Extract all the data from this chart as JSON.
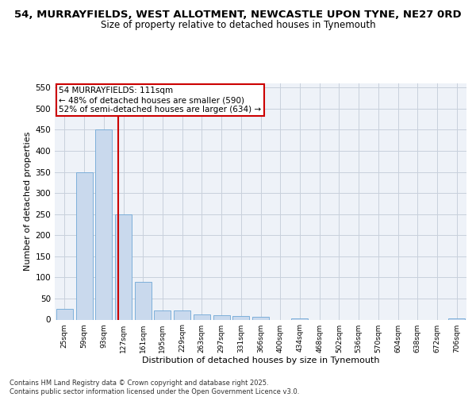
{
  "title_line1": "54, MURRAYFIELDS, WEST ALLOTMENT, NEWCASTLE UPON TYNE, NE27 0RD",
  "title_line2": "Size of property relative to detached houses in Tynemouth",
  "xlabel": "Distribution of detached houses by size in Tynemouth",
  "ylabel": "Number of detached properties",
  "bar_labels": [
    "25sqm",
    "59sqm",
    "93sqm",
    "127sqm",
    "161sqm",
    "195sqm",
    "229sqm",
    "263sqm",
    "297sqm",
    "331sqm",
    "366sqm",
    "400sqm",
    "434sqm",
    "468sqm",
    "502sqm",
    "536sqm",
    "570sqm",
    "604sqm",
    "638sqm",
    "672sqm",
    "706sqm"
  ],
  "bar_values": [
    25,
    350,
    450,
    250,
    90,
    22,
    22,
    12,
    10,
    8,
    6,
    0,
    3,
    0,
    0,
    0,
    0,
    0,
    0,
    0,
    3
  ],
  "bar_color": "#c9d9ed",
  "bar_edge_color": "#6fa8d6",
  "vline_x": 2.72,
  "vline_color": "#cc0000",
  "annotation_text": "54 MURRAYFIELDS: 111sqm\n← 48% of detached houses are smaller (590)\n52% of semi-detached houses are larger (634) →",
  "annotation_box_color": "#ffffff",
  "annotation_box_edge": "#cc0000",
  "ylim": [
    0,
    560
  ],
  "yticks": [
    0,
    50,
    100,
    150,
    200,
    250,
    300,
    350,
    400,
    450,
    500,
    550
  ],
  "grid_color": "#c8d0dc",
  "background_color": "#eef2f8",
  "footer_text": "Contains HM Land Registry data © Crown copyright and database right 2025.\nContains public sector information licensed under the Open Government Licence v3.0."
}
